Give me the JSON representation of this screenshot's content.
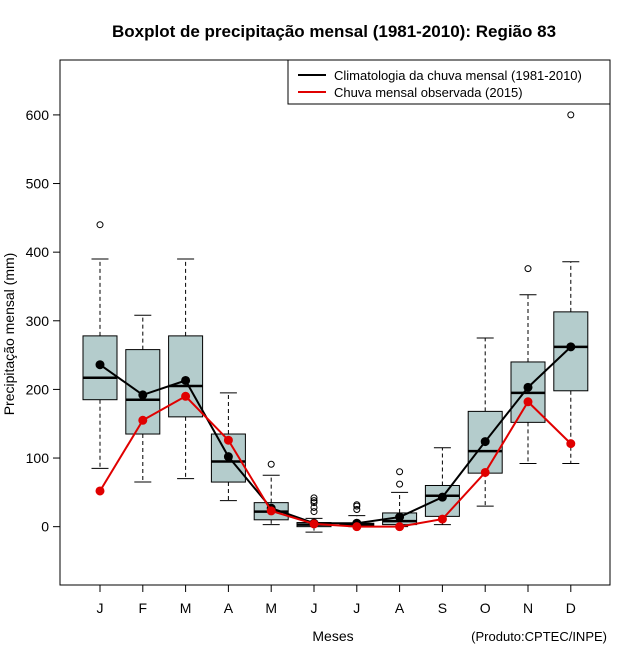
{
  "chart_data": {
    "type": "boxplot",
    "title": "Boxplot de precipitação mensal (1981-2010): Região 83",
    "xlabel": "Meses",
    "ylabel": "Precipitação mensal (mm)",
    "ylim": [
      -85,
      680
    ],
    "yticks": [
      0,
      100,
      200,
      300,
      400,
      500,
      600
    ],
    "categories": [
      "J",
      "F",
      "M",
      "A",
      "M",
      "J",
      "J",
      "A",
      "S",
      "O",
      "N",
      "D"
    ],
    "boxes": [
      {
        "min": 85,
        "q1": 185,
        "median": 217,
        "q3": 278,
        "max": 390,
        "outliers": [
          440
        ]
      },
      {
        "min": 65,
        "q1": 135,
        "median": 185,
        "q3": 258,
        "max": 308,
        "outliers": []
      },
      {
        "min": 70,
        "q1": 160,
        "median": 205,
        "q3": 278,
        "max": 390,
        "outliers": []
      },
      {
        "min": 38,
        "q1": 65,
        "median": 95,
        "q3": 135,
        "max": 195,
        "outliers": []
      },
      {
        "min": 3,
        "q1": 10,
        "median": 22,
        "q3": 35,
        "max": 75,
        "outliers": [
          91
        ]
      },
      {
        "min": -8,
        "q1": 0,
        "median": 3,
        "q3": 6,
        "max": 12,
        "outliers": [
          22,
          28,
          35,
          38,
          42
        ]
      },
      {
        "min": 0,
        "q1": 1,
        "median": 3,
        "q3": 5,
        "max": 16,
        "outliers": [
          25,
          30,
          32
        ]
      },
      {
        "min": 0,
        "q1": 3,
        "median": 8,
        "q3": 20,
        "max": 50,
        "outliers": [
          62,
          80
        ]
      },
      {
        "min": 3,
        "q1": 15,
        "median": 45,
        "q3": 60,
        "max": 115,
        "outliers": []
      },
      {
        "min": 30,
        "q1": 78,
        "median": 110,
        "q3": 168,
        "max": 275,
        "outliers": []
      },
      {
        "min": 92,
        "q1": 152,
        "median": 195,
        "q3": 240,
        "max": 338,
        "outliers": [
          376
        ]
      },
      {
        "min": 92,
        "q1": 198,
        "median": 262,
        "q3": 313,
        "max": 386,
        "outliers": [
          600
        ]
      }
    ],
    "series": [
      {
        "name": "Climatologia da chuva mensal (1981-2010)",
        "color": "#000000",
        "values": [
          236,
          192,
          213,
          102,
          27,
          5,
          5,
          14,
          43,
          124,
          203,
          262
        ]
      },
      {
        "name": "Chuva mensal observada (2015)",
        "color": "#e00000",
        "values": [
          52,
          155,
          190,
          126,
          23,
          4,
          0,
          0,
          11,
          79,
          182,
          121
        ]
      }
    ],
    "legend_position": "top-right",
    "box_fill": "#b4cccc",
    "credit": "(Produto:CPTEC/INPE)"
  }
}
